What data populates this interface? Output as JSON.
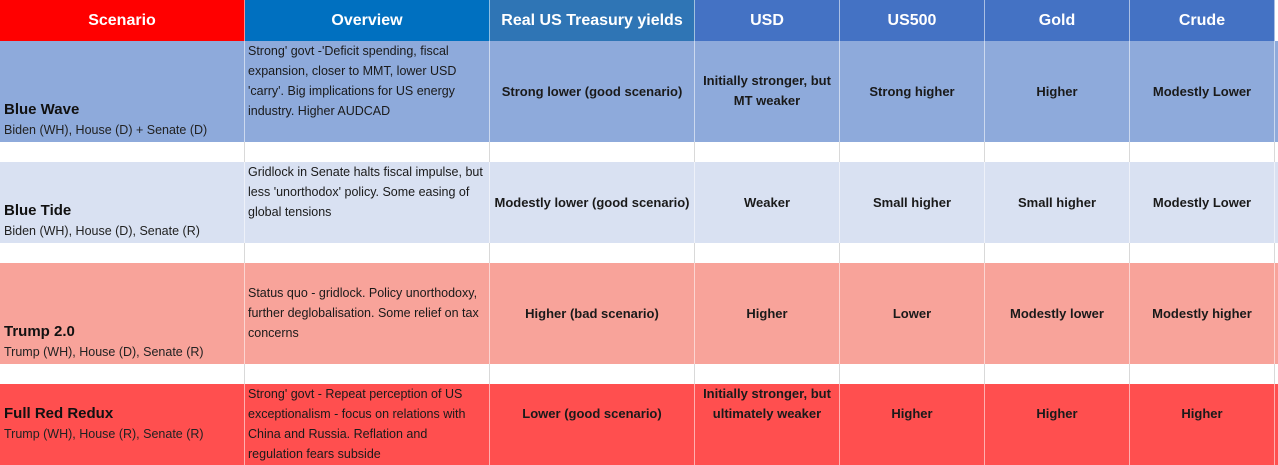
{
  "header": {
    "scenario": "Scenario",
    "overview": "Overview",
    "yields": "Real US Treasury yields",
    "usd": "USD",
    "us500": "US500",
    "gold": "Gold",
    "crude": "Crude"
  },
  "colors": {
    "header_scenario": "#ff0000",
    "header_overview": "#0070c0",
    "header_yields": "#2f75b5",
    "header_assets": "#4472c4",
    "row_blue_wave": "#8eaadb",
    "row_blue_tide": "#d9e1f2",
    "row_trump": "#f8a39a",
    "row_red": "#ff4f4f"
  },
  "rows": [
    {
      "name": "Blue Wave",
      "sub": "Biden (WH), House (D) + Senate (D)",
      "overview": "Strong' govt -'Deficit spending, fiscal expansion, closer to MMT, lower USD 'carry'. Big implications for US energy industry.  Higher AUDCAD",
      "yields": "Strong lower (good scenario)",
      "usd": "Initially stronger, but MT weaker",
      "us500": "Strong higher",
      "gold": "Higher",
      "crude": "Modestly Lower"
    },
    {
      "name": "Blue Tide",
      "sub": "Biden (WH), House (D), Senate (R)",
      "overview": "Gridlock in Senate halts fiscal impulse, but less 'unorthodox' policy. Some easing of global tensions",
      "yields": "Modestly lower (good scenario)",
      "usd": "Weaker",
      "us500": "Small higher",
      "gold": "Small higher",
      "crude": "Modestly Lower"
    },
    {
      "name": "Trump 2.0",
      "sub": "Trump (WH), House (D), Senate (R)",
      "overview": "Status quo - gridlock. Policy unorthodoxy, further deglobalisation. Some relief on tax concerns",
      "yields": "Higher (bad scenario)",
      "usd": "Higher",
      "us500": "Lower",
      "gold": "Modestly lower",
      "crude": "Modestly higher"
    },
    {
      "name": "Full Red Redux",
      "sub": "Trump (WH), House (R), Senate (R)",
      "overview": "Strong' govt - Repeat perception of US exceptionalism  - focus on relations with China and Russia. Reflation and regulation fears subside",
      "yields": "Lower (good scenario)",
      "usd": "Initially stronger, but ultimately weaker",
      "us500": "Higher",
      "gold": "Higher",
      "crude": "Higher"
    }
  ]
}
